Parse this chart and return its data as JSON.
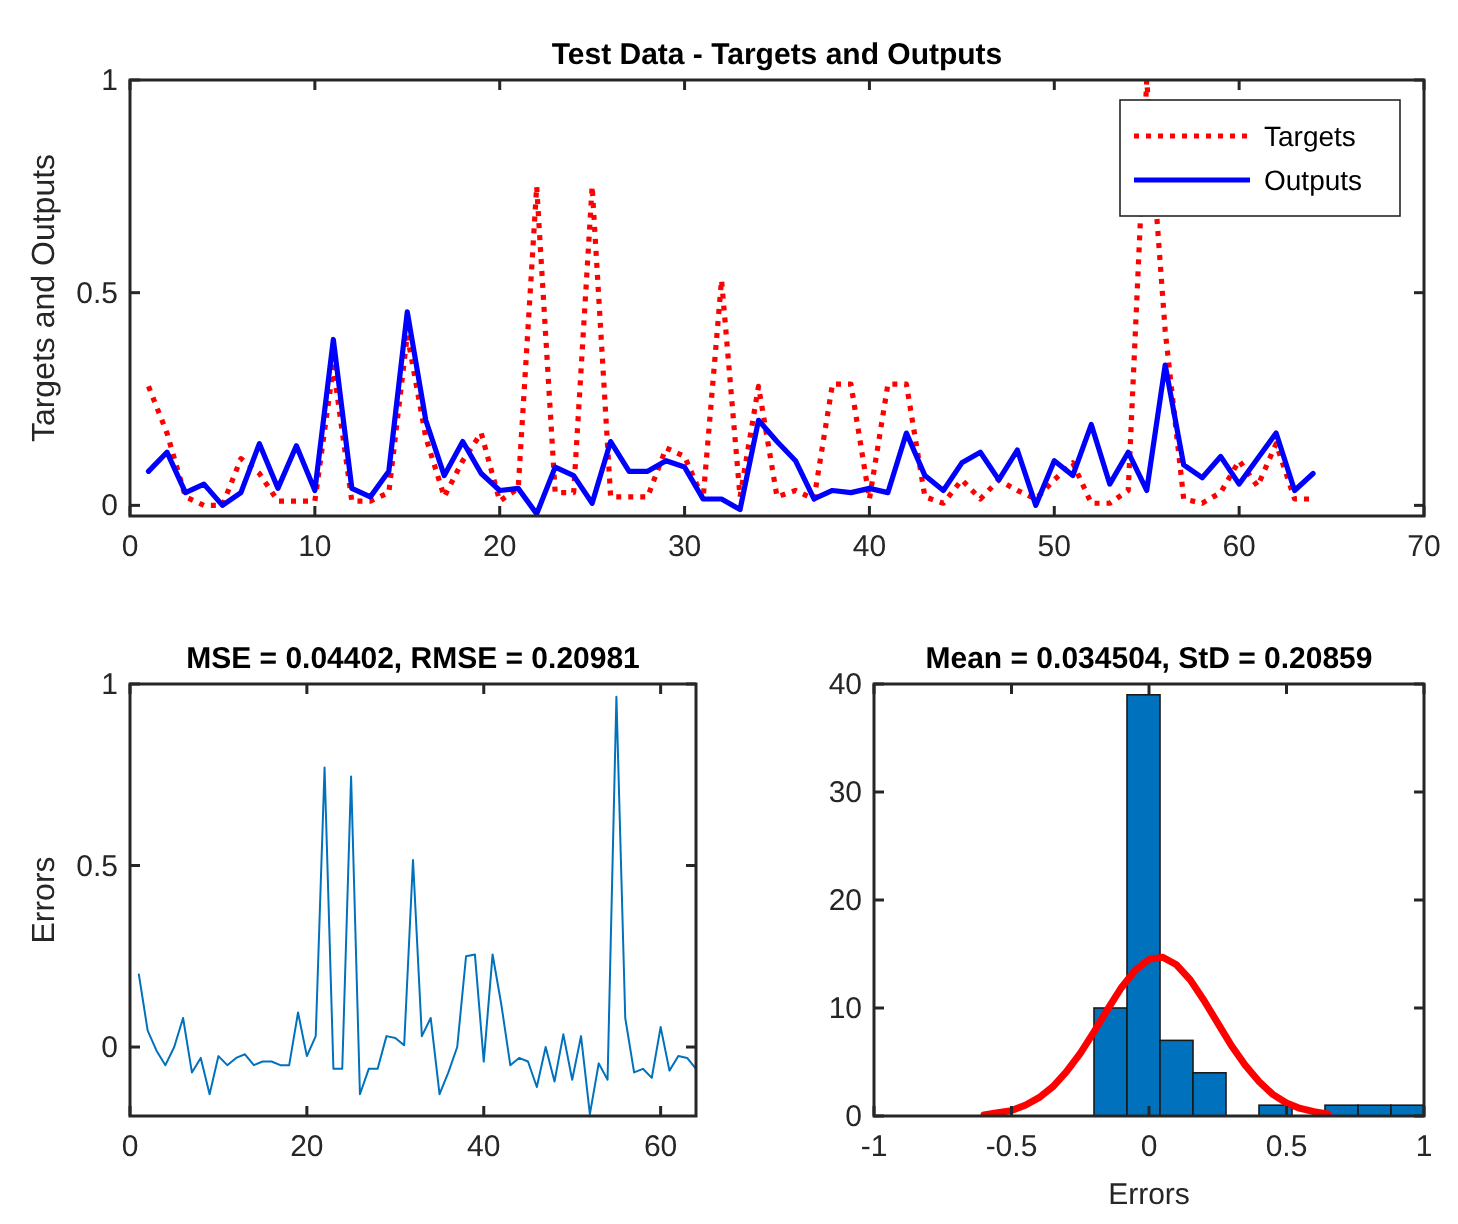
{
  "chart_data": [
    {
      "type": "line",
      "title": "Test Data - Targets and Outputs",
      "ylabel": "Targets and Outputs",
      "x": [
        1,
        2,
        3,
        4,
        5,
        6,
        7,
        8,
        9,
        10,
        11,
        12,
        13,
        14,
        15,
        16,
        17,
        18,
        19,
        20,
        21,
        22,
        23,
        24,
        25,
        26,
        27,
        28,
        29,
        30,
        31,
        32,
        33,
        34,
        35,
        36,
        37,
        38,
        39,
        40,
        41,
        42,
        43,
        44,
        45,
        46,
        47,
        48,
        49,
        50,
        51,
        52,
        53,
        54,
        55,
        56,
        57,
        58,
        59,
        60,
        61,
        62,
        63,
        64
      ],
      "series": [
        {
          "name": "Targets",
          "color": "#ff0000",
          "line_style": "dotted",
          "values": [
            0.28,
            0.17,
            0.02,
            0,
            0,
            0.11,
            0.075,
            0.01,
            0.01,
            0.01,
            0.325,
            0.01,
            0.01,
            0.03,
            0.4,
            0.16,
            0.02,
            0.105,
            0.17,
            0.01,
            0.04,
            0.75,
            0.03,
            0.03,
            0.75,
            0.02,
            0.02,
            0.02,
            0.135,
            0.115,
            0.015,
            0.53,
            0.02,
            0.28,
            0.02,
            0.035,
            0.015,
            0.285,
            0.285,
            0.015,
            0.285,
            0.285,
            0.02,
            0.005,
            0.06,
            0.015,
            0.06,
            0.035,
            0.015,
            0.06,
            0.1,
            0.005,
            0.005,
            0.035,
            1,
            0.41,
            0.015,
            0.005,
            0.03,
            0.105,
            0.045,
            0.145,
            0.015,
            0.015
          ]
        },
        {
          "name": "Outputs",
          "color": "#0000ff",
          "line_style": "solid",
          "values": [
            0.08,
            0.125,
            0.03,
            0.05,
            0,
            0.03,
            0.145,
            0.04,
            0.14,
            0.035,
            0.39,
            0.04,
            0.02,
            0.08,
            0.455,
            0.2,
            0.07,
            0.15,
            0.075,
            0.035,
            0.04,
            -0.02,
            0.09,
            0.07,
            0.005,
            0.15,
            0.08,
            0.08,
            0.105,
            0.09,
            0.015,
            0.015,
            -0.01,
            0.2,
            0.15,
            0.105,
            0.015,
            0.035,
            0.03,
            0.04,
            0.03,
            0.17,
            0.07,
            0.035,
            0.1,
            0.125,
            0.06,
            0.13,
            0,
            0.105,
            0.07,
            0.19,
            0.05,
            0.125,
            0.035,
            0.33,
            0.095,
            0.065,
            0.115,
            0.05,
            0.11,
            0.17,
            0.035,
            0.075
          ]
        }
      ],
      "xlim": [
        0,
        70
      ],
      "xticks": [
        0,
        10,
        20,
        30,
        40,
        50,
        60,
        70
      ],
      "ylim": [
        -0.025,
        1
      ],
      "yticks": [
        0,
        0.5,
        1
      ],
      "legend": "top right"
    },
    {
      "type": "line",
      "title": "MSE = 0.04402, RMSE = 0.20981",
      "ylabel": "Errors",
      "x": [
        1,
        2,
        3,
        4,
        5,
        6,
        7,
        8,
        9,
        10,
        11,
        12,
        13,
        14,
        15,
        16,
        17,
        18,
        19,
        20,
        21,
        22,
        23,
        24,
        25,
        26,
        27,
        28,
        29,
        30,
        31,
        32,
        33,
        34,
        35,
        36,
        37,
        38,
        39,
        40,
        41,
        42,
        43,
        44,
        45,
        46,
        47,
        48,
        49,
        50,
        51,
        52,
        53,
        54,
        55,
        56,
        57,
        58,
        59,
        60,
        61,
        62,
        63,
        64
      ],
      "series": [
        {
          "color": "#0072bd",
          "values": [
            0.2,
            0.045,
            -0.01,
            -0.05,
            0,
            0.08,
            -0.07,
            -0.03,
            -0.13,
            -0.025,
            -0.05,
            -0.03,
            -0.02,
            -0.05,
            -0.04,
            -0.04,
            -0.05,
            -0.05,
            0.095,
            -0.025,
            0.03,
            0.77,
            -0.06,
            -0.06,
            0.745,
            -0.13,
            -0.06,
            -0.06,
            0.03,
            0.025,
            0.005,
            0.515,
            0.03,
            0.08,
            -0.13,
            -0.07,
            0,
            0.25,
            0.255,
            -0.04,
            0.255,
            0.115,
            -0.05,
            -0.03,
            -0.04,
            -0.11,
            0,
            -0.095,
            0.035,
            -0.09,
            0.03,
            -0.185,
            -0.045,
            -0.09,
            0.965,
            0.08,
            -0.07,
            -0.06,
            -0.085,
            0.055,
            -0.065,
            -0.025,
            -0.03,
            -0.06
          ]
        }
      ],
      "xlim": [
        0,
        64
      ],
      "xticks": [
        0,
        20,
        40,
        60
      ],
      "ylim": [
        -0.19,
        1
      ],
      "yticks": [
        0,
        0.5,
        1
      ]
    },
    {
      "type": "histogram",
      "title": "Mean = 0.034504, StD = 0.20859",
      "xlabel": "Errors",
      "color": "#0072bd",
      "bins": [
        -0.2,
        -0.08,
        0.04,
        0.16,
        0.28,
        0.4,
        0.52,
        0.64,
        0.76,
        0.88,
        1
      ],
      "values": [
        10,
        39,
        7,
        4,
        0,
        1,
        0,
        1,
        1,
        1
      ],
      "series": [
        {
          "type": "line",
          "color": "#ff0000",
          "x": [
            -0.6,
            -0.55,
            -0.5,
            -0.45,
            -0.4,
            -0.35,
            -0.3,
            -0.25,
            -0.2,
            -0.15,
            -0.1,
            -0.05,
            0,
            0.05,
            0.1,
            0.15,
            0.2,
            0.25,
            0.3,
            0.35,
            0.4,
            0.45,
            0.5,
            0.55,
            0.6,
            0.65
          ],
          "values": [
            0.1,
            0.3,
            0.5,
            1,
            1.7,
            2.7,
            4.1,
            5.8,
            7.8,
            9.9,
            11.9,
            13.5,
            14.5,
            14.7,
            14,
            12.6,
            10.7,
            8.6,
            6.5,
            4.7,
            3.2,
            2,
            1.2,
            0.7,
            0.4,
            0.2
          ]
        }
      ],
      "xlim": [
        -1,
        1
      ],
      "xticks": [
        -1,
        -0.5,
        0,
        0.5,
        1
      ],
      "ylim": [
        0,
        40
      ],
      "yticks": [
        0,
        10,
        20,
        30,
        40
      ]
    }
  ]
}
